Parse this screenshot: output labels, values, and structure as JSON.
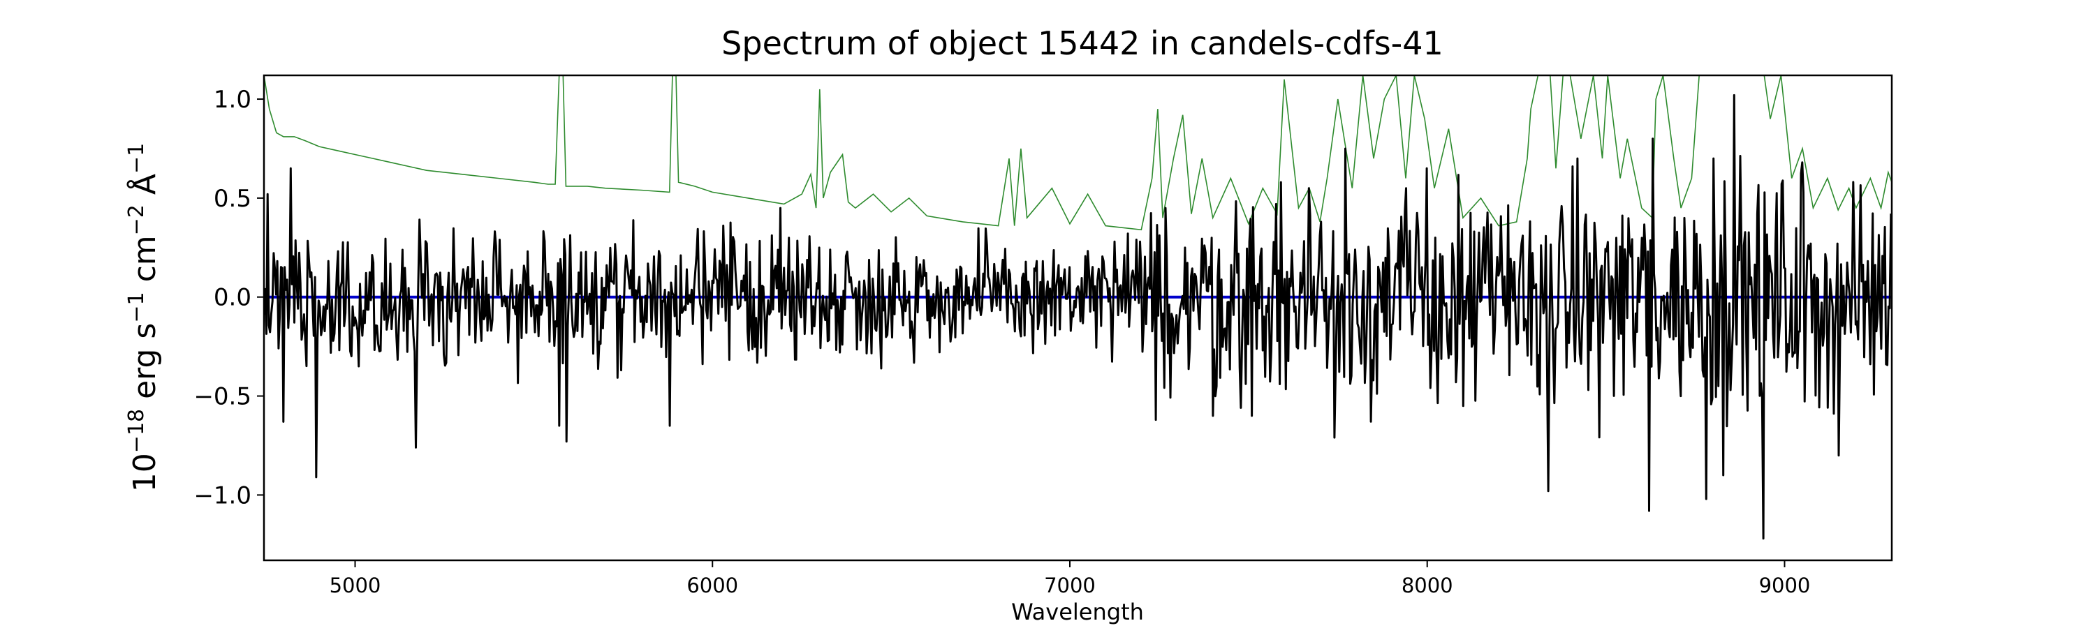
{
  "chart_data": {
    "type": "line",
    "title": "Spectrum of object 15442 in candels-cdfs-41",
    "xlabel": "Wavelength",
    "ylabel": {
      "base": "10",
      "exp1": "−18",
      "part1": " erg s",
      "exp2": "−1",
      "part2": " cm",
      "exp3": "−2",
      "part3": " Å",
      "exp4": "−1"
    },
    "xlim": [
      4745,
      9300
    ],
    "ylim": [
      -1.33,
      1.12
    ],
    "xticks": [
      5000,
      6000,
      7000,
      8000,
      9000
    ],
    "yticks": [
      {
        "value": -1.0,
        "label": "−1.0"
      },
      {
        "value": -0.5,
        "label": "−0.5"
      },
      {
        "value": 0.0,
        "label": "0.0"
      },
      {
        "value": 0.5,
        "label": "0.5"
      },
      {
        "value": 1.0,
        "label": "1.0"
      }
    ],
    "grid": false,
    "series": [
      {
        "role": "error",
        "color": "#2e8b2e",
        "points": [
          [
            4745,
            1.12
          ],
          [
            4760,
            0.95
          ],
          [
            4780,
            0.83
          ],
          [
            4800,
            0.81
          ],
          [
            4830,
            0.81
          ],
          [
            4860,
            0.79
          ],
          [
            4900,
            0.76
          ],
          [
            4950,
            0.74
          ],
          [
            5000,
            0.72
          ],
          [
            5050,
            0.7
          ],
          [
            5100,
            0.68
          ],
          [
            5150,
            0.66
          ],
          [
            5200,
            0.64
          ],
          [
            5300,
            0.62
          ],
          [
            5400,
            0.6
          ],
          [
            5500,
            0.58
          ],
          [
            5540,
            0.57
          ],
          [
            5560,
            0.57
          ],
          [
            5571,
            1.12
          ],
          [
            5582,
            1.12
          ],
          [
            5590,
            0.56
          ],
          [
            5650,
            0.56
          ],
          [
            5700,
            0.55
          ],
          [
            5800,
            0.54
          ],
          [
            5880,
            0.53
          ],
          [
            5888,
            1.12
          ],
          [
            5898,
            1.12
          ],
          [
            5905,
            0.58
          ],
          [
            5950,
            0.56
          ],
          [
            6000,
            0.53
          ],
          [
            6100,
            0.5
          ],
          [
            6200,
            0.47
          ],
          [
            6250,
            0.52
          ],
          [
            6275,
            0.62
          ],
          [
            6290,
            0.45
          ],
          [
            6300,
            1.05
          ],
          [
            6310,
            0.5
          ],
          [
            6330,
            0.63
          ],
          [
            6364,
            0.72
          ],
          [
            6380,
            0.48
          ],
          [
            6400,
            0.45
          ],
          [
            6450,
            0.52
          ],
          [
            6500,
            0.43
          ],
          [
            6550,
            0.5
          ],
          [
            6600,
            0.41
          ],
          [
            6700,
            0.38
          ],
          [
            6800,
            0.36
          ],
          [
            6830,
            0.7
          ],
          [
            6845,
            0.36
          ],
          [
            6863,
            0.75
          ],
          [
            6880,
            0.4
          ],
          [
            6950,
            0.55
          ],
          [
            7000,
            0.37
          ],
          [
            7050,
            0.52
          ],
          [
            7100,
            0.36
          ],
          [
            7200,
            0.34
          ],
          [
            7230,
            0.6
          ],
          [
            7246,
            0.95
          ],
          [
            7260,
            0.4
          ],
          [
            7290,
            0.7
          ],
          [
            7316,
            0.92
          ],
          [
            7340,
            0.42
          ],
          [
            7370,
            0.7
          ],
          [
            7400,
            0.4
          ],
          [
            7450,
            0.6
          ],
          [
            7500,
            0.37
          ],
          [
            7540,
            0.55
          ],
          [
            7580,
            0.42
          ],
          [
            7600,
            1.1
          ],
          [
            7640,
            0.45
          ],
          [
            7670,
            0.55
          ],
          [
            7700,
            0.38
          ],
          [
            7720,
            0.6
          ],
          [
            7750,
            1.0
          ],
          [
            7790,
            0.55
          ],
          [
            7820,
            1.12
          ],
          [
            7850,
            0.7
          ],
          [
            7880,
            1.0
          ],
          [
            7913,
            1.12
          ],
          [
            7940,
            0.6
          ],
          [
            7964,
            1.12
          ],
          [
            7993,
            0.9
          ],
          [
            8020,
            0.55
          ],
          [
            8060,
            0.85
          ],
          [
            8100,
            0.4
          ],
          [
            8150,
            0.5
          ],
          [
            8200,
            0.36
          ],
          [
            8250,
            0.38
          ],
          [
            8280,
            0.7
          ],
          [
            8290,
            0.95
          ],
          [
            8310,
            1.12
          ],
          [
            8344,
            1.12
          ],
          [
            8360,
            0.65
          ],
          [
            8380,
            1.12
          ],
          [
            8400,
            1.12
          ],
          [
            8430,
            0.8
          ],
          [
            8465,
            1.12
          ],
          [
            8490,
            0.7
          ],
          [
            8505,
            1.12
          ],
          [
            8540,
            0.6
          ],
          [
            8560,
            0.8
          ],
          [
            8600,
            0.45
          ],
          [
            8630,
            0.4
          ],
          [
            8640,
            1.0
          ],
          [
            8660,
            1.12
          ],
          [
            8690,
            0.7
          ],
          [
            8710,
            0.45
          ],
          [
            8740,
            0.6
          ],
          [
            8761,
            1.12
          ],
          [
            8790,
            1.12
          ],
          [
            8827,
            1.12
          ],
          [
            8860,
            1.12
          ],
          [
            8885,
            1.12
          ],
          [
            8919,
            1.12
          ],
          [
            8943,
            1.12
          ],
          [
            8960,
            0.9
          ],
          [
            8990,
            1.12
          ],
          [
            9020,
            0.6
          ],
          [
            9050,
            0.75
          ],
          [
            9080,
            0.45
          ],
          [
            9120,
            0.6
          ],
          [
            9150,
            0.44
          ],
          [
            9180,
            0.55
          ],
          [
            9200,
            0.45
          ],
          [
            9240,
            0.6
          ],
          [
            9270,
            0.45
          ],
          [
            9290,
            0.63
          ],
          [
            9300,
            0.58
          ]
        ]
      },
      {
        "role": "zero",
        "color": "#0000cc",
        "points": [
          [
            4745,
            0.0
          ],
          [
            9300,
            0.0
          ]
        ]
      },
      {
        "role": "flux",
        "color": "#000000",
        "amplitude": [
          [
            4745,
            0.25
          ],
          [
            5500,
            0.27
          ],
          [
            6200,
            0.25
          ],
          [
            6700,
            0.22
          ],
          [
            7200,
            0.22
          ],
          [
            7250,
            0.38
          ],
          [
            7700,
            0.38
          ],
          [
            8000,
            0.42
          ],
          [
            8300,
            0.38
          ],
          [
            8600,
            0.45
          ],
          [
            9000,
            0.48
          ],
          [
            9300,
            0.4
          ]
        ],
        "spikes": [
          [
            4755,
            0.52
          ],
          [
            4800,
            -0.63
          ],
          [
            4820,
            0.65
          ],
          [
            4890,
            -0.91
          ],
          [
            5170,
            -0.76
          ],
          [
            5570,
            -0.65
          ],
          [
            5590,
            -0.73
          ],
          [
            5880,
            -0.65
          ],
          [
            6190,
            0.45
          ],
          [
            7240,
            -0.62
          ],
          [
            7400,
            0.55
          ],
          [
            7400,
            -0.6
          ],
          [
            7510,
            -0.6
          ],
          [
            7670,
            0.55
          ],
          [
            7740,
            -0.71
          ],
          [
            7770,
            0.75
          ],
          [
            7940,
            0.55
          ],
          [
            8000,
            0.65
          ],
          [
            8100,
            -0.55
          ],
          [
            8340,
            -0.98
          ],
          [
            8420,
            0.7
          ],
          [
            8620,
            -1.08
          ],
          [
            8630,
            0.8
          ],
          [
            8780,
            -1.02
          ],
          [
            8800,
            0.7
          ],
          [
            8830,
            -0.9
          ],
          [
            8860,
            1.02
          ],
          [
            8940,
            -1.22
          ],
          [
            9150,
            -0.8
          ],
          [
            9050,
            0.68
          ]
        ]
      }
    ]
  }
}
